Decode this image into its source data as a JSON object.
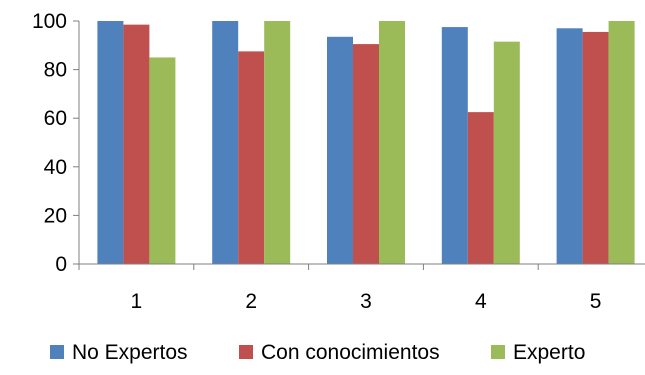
{
  "chart_data": {
    "type": "bar",
    "categories": [
      "1",
      "2",
      "3",
      "4",
      "5"
    ],
    "series": [
      {
        "name": "No Expertos",
        "color": "#4f81bd",
        "values": [
          100,
          100,
          93.5,
          97.5,
          97
        ]
      },
      {
        "name": "Con conocimientos",
        "color": "#c0504d",
        "values": [
          98.5,
          87.5,
          90.5,
          62.5,
          95.5
        ]
      },
      {
        "name": "Experto",
        "color": "#9bbb59",
        "values": [
          85,
          100,
          100,
          91.5,
          100
        ]
      }
    ],
    "ylim": [
      0,
      100
    ],
    "yticks": [
      0,
      20,
      40,
      60,
      80,
      100
    ],
    "title": "",
    "xlabel": "",
    "ylabel": "",
    "grid": false,
    "legend_position": "bottom"
  }
}
